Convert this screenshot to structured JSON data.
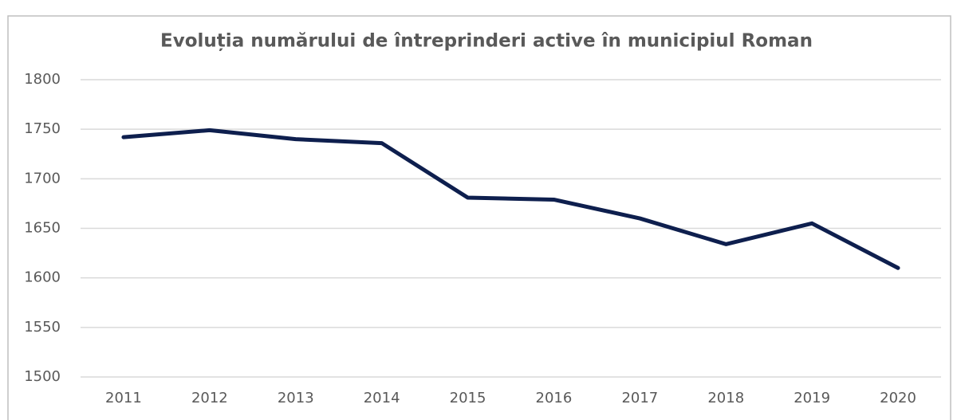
{
  "chart_data": {
    "type": "line",
    "title": "Evoluția numărului de întreprinderi active în municipiul Roman",
    "categories": [
      "2011",
      "2012",
      "2013",
      "2014",
      "2015",
      "2016",
      "2017",
      "2018",
      "2019",
      "2020"
    ],
    "series": [
      {
        "name": "Întreprinderi active",
        "color": "#0e1f4e",
        "values": [
          1742,
          1749,
          1740,
          1736,
          1681,
          1679,
          1660,
          1634,
          1655,
          1610
        ]
      }
    ],
    "ylim": [
      1500,
      1800
    ],
    "yticks": [
      1500,
      1550,
      1600,
      1650,
      1700,
      1750,
      1800
    ],
    "grid": true
  }
}
